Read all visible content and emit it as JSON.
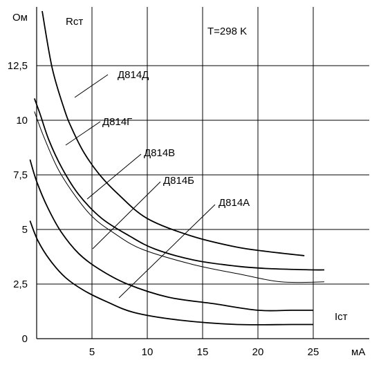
{
  "chart_data": {
    "type": "line",
    "title": "",
    "xlabel": "Iст",
    "ylabel": "Rст",
    "x_unit": "мА",
    "y_unit": "Ом",
    "annotation": "T=298 K",
    "xlim": [
      0,
      25
    ],
    "ylim": [
      0,
      15
    ],
    "x_ticks": [
      {
        "v": 5,
        "label": "5"
      },
      {
        "v": 10,
        "label": "10"
      },
      {
        "v": 15,
        "label": "15"
      },
      {
        "v": 20,
        "label": "20"
      },
      {
        "v": 25,
        "label": "25"
      }
    ],
    "y_ticks": [
      {
        "v": 0,
        "label": "0"
      },
      {
        "v": 2.5,
        "label": "2,5"
      },
      {
        "v": 5,
        "label": "5"
      },
      {
        "v": 7.5,
        "label": "7,5"
      },
      {
        "v": 10,
        "label": "10"
      },
      {
        "v": 12.5,
        "label": "12,5"
      }
    ],
    "grid": true,
    "series": [
      {
        "name": "Д814Д",
        "x": [
          0.5,
          1.4,
          2.5,
          3.2,
          4.3,
          5.7,
          7.4,
          10.0,
          14.0,
          18.0,
          20.7,
          24.2
        ],
        "y": [
          15,
          12.4,
          10.5,
          9.6,
          8.5,
          7.5,
          6.6,
          5.5,
          4.7,
          4.2,
          4.0,
          3.8
        ]
      },
      {
        "name": "Д814Г",
        "x": [
          -0.2,
          0.3,
          1.1,
          2.3,
          3.8,
          5.9,
          8.4,
          10.7,
          14.2,
          18.4,
          21.4,
          25.0,
          26.0
        ],
        "y": [
          11.0,
          10.3,
          9.1,
          7.8,
          6.6,
          5.5,
          4.7,
          4.1,
          3.6,
          3.3,
          3.2,
          3.15,
          3.15
        ]
      },
      {
        "name": "Д814В",
        "x": [
          -0.2,
          0.6,
          1.9,
          3.4,
          5.0,
          6.8,
          9.5,
          14.1,
          18.4,
          22.1,
          26.0
        ],
        "y": [
          10.4,
          9.3,
          7.8,
          6.6,
          5.6,
          4.9,
          4.1,
          3.4,
          2.95,
          2.6,
          2.6
        ]
      },
      {
        "name": "Д814Б",
        "x": [
          -0.6,
          0.0,
          1.0,
          2.2,
          3.8,
          5.6,
          8.2,
          11.9,
          16.0,
          20.0,
          23.0,
          25.0
        ],
        "y": [
          8.2,
          7.2,
          6.0,
          4.9,
          3.9,
          3.2,
          2.5,
          1.9,
          1.6,
          1.3,
          1.3,
          1.3
        ]
      },
      {
        "name": "Д814А",
        "x": [
          -0.6,
          0.1,
          1.2,
          2.6,
          4.3,
          6.3,
          8.8,
          12.9,
          18.1,
          23.0,
          25.0
        ],
        "y": [
          5.4,
          4.5,
          3.6,
          2.8,
          2.2,
          1.7,
          1.2,
          0.85,
          0.65,
          0.65,
          0.65
        ]
      }
    ],
    "labels": [
      {
        "series": "Д814Д",
        "text": "Д814Д"
      },
      {
        "series": "Д814Г",
        "text": "Д814Г"
      },
      {
        "series": "Д814В",
        "text": "Д814В"
      },
      {
        "series": "Д814Б",
        "text": "Д814Б"
      },
      {
        "series": "Д814А",
        "text": "Д814А"
      }
    ]
  }
}
